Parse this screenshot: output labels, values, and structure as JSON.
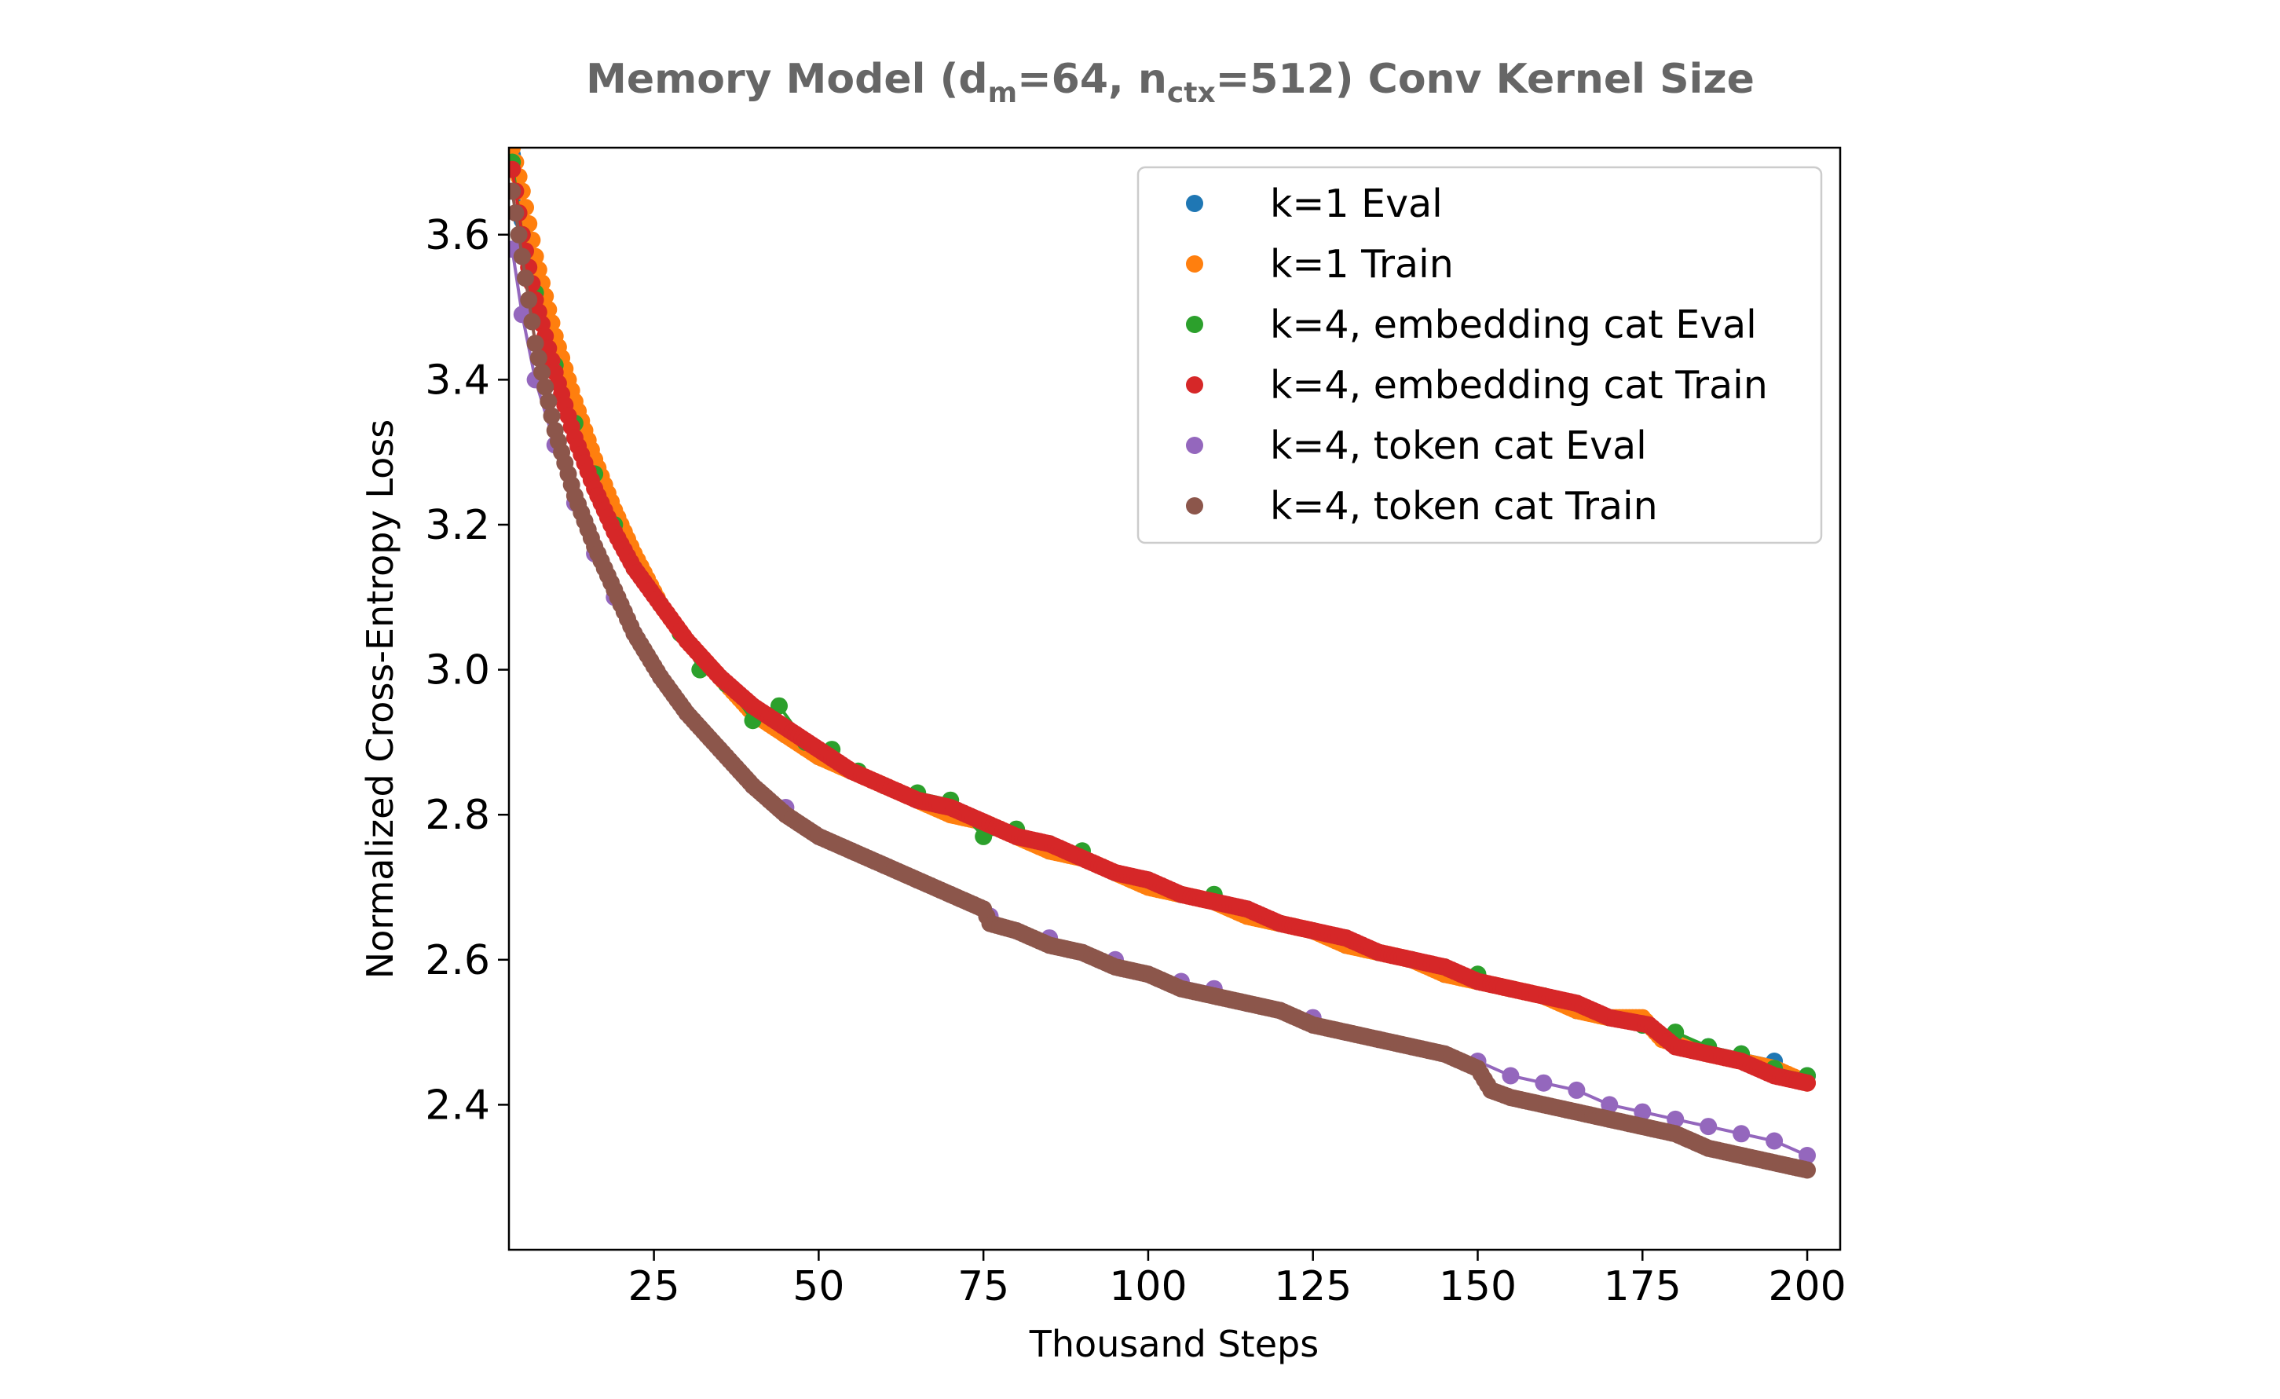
{
  "chart_data": {
    "type": "scatter",
    "title": {
      "prefix": "Memory Model (d",
      "sub1": "m",
      "mid": "=64, n",
      "sub2": "ctx",
      "suffix": "=512) Conv Kernel Size"
    },
    "xlabel": "Thousand Steps",
    "ylabel": "Normalized Cross-Entropy Loss",
    "xlim": [
      3,
      205
    ],
    "ylim": [
      2.2,
      3.72
    ],
    "xticks": [
      "25",
      "50",
      "75",
      "100",
      "125",
      "150",
      "175",
      "200"
    ],
    "yticks": [
      "2.4",
      "2.6",
      "2.8",
      "3.0",
      "3.2",
      "3.4",
      "3.6"
    ],
    "grid": false,
    "legend_position": "top-right",
    "series": [
      {
        "name": "k=1 Eval",
        "color": "#1f77b4",
        "style": "eval",
        "points": [
          [
            3.5,
            3.71
          ],
          [
            5,
            3.62
          ],
          [
            7,
            3.53
          ],
          [
            10,
            3.43
          ],
          [
            13,
            3.35
          ],
          [
            16,
            3.27
          ],
          [
            19,
            3.21
          ],
          [
            22,
            3.15
          ],
          [
            26,
            3.09
          ],
          [
            30,
            3.04
          ],
          [
            35,
            2.99
          ],
          [
            40,
            2.94
          ],
          [
            45,
            2.91
          ],
          [
            50,
            2.88
          ],
          [
            55,
            2.86
          ],
          [
            60,
            2.84
          ],
          [
            65,
            2.82
          ],
          [
            70,
            2.81
          ],
          [
            75,
            2.79
          ],
          [
            80,
            2.77
          ],
          [
            85,
            2.75
          ],
          [
            90,
            2.74
          ],
          [
            95,
            2.72
          ],
          [
            100,
            2.71
          ],
          [
            105,
            2.69
          ],
          [
            110,
            2.68
          ],
          [
            115,
            2.67
          ],
          [
            120,
            2.65
          ],
          [
            125,
            2.64
          ],
          [
            130,
            2.62
          ],
          [
            135,
            2.61
          ],
          [
            140,
            2.6
          ],
          [
            145,
            2.58
          ],
          [
            150,
            2.57
          ],
          [
            155,
            2.56
          ],
          [
            160,
            2.55
          ],
          [
            165,
            2.53
          ],
          [
            170,
            2.52
          ],
          [
            175,
            2.51
          ],
          [
            180,
            2.49
          ],
          [
            185,
            2.48
          ],
          [
            190,
            2.47
          ],
          [
            195,
            2.46
          ],
          [
            200,
            2.44
          ]
        ]
      },
      {
        "name": "k=1 Train",
        "color": "#ff7f0e",
        "style": "train",
        "points": [
          [
            3.5,
            3.72
          ],
          [
            5,
            3.66
          ],
          [
            7,
            3.57
          ],
          [
            10,
            3.46
          ],
          [
            13,
            3.37
          ],
          [
            16,
            3.29
          ],
          [
            19,
            3.22
          ],
          [
            22,
            3.16
          ],
          [
            26,
            3.09
          ],
          [
            30,
            3.04
          ],
          [
            35,
            2.99
          ],
          [
            40,
            2.94
          ],
          [
            45,
            2.91
          ],
          [
            50,
            2.88
          ],
          [
            55,
            2.86
          ],
          [
            60,
            2.84
          ],
          [
            65,
            2.82
          ],
          [
            70,
            2.8
          ],
          [
            75,
            2.79
          ],
          [
            80,
            2.77
          ],
          [
            85,
            2.75
          ],
          [
            90,
            2.74
          ],
          [
            95,
            2.72
          ],
          [
            100,
            2.7
          ],
          [
            105,
            2.69
          ],
          [
            110,
            2.68
          ],
          [
            115,
            2.66
          ],
          [
            120,
            2.65
          ],
          [
            125,
            2.64
          ],
          [
            130,
            2.62
          ],
          [
            135,
            2.61
          ],
          [
            140,
            2.6
          ],
          [
            145,
            2.58
          ],
          [
            150,
            2.57
          ],
          [
            155,
            2.56
          ],
          [
            160,
            2.55
          ],
          [
            165,
            2.53
          ],
          [
            170,
            2.52
          ],
          [
            175,
            2.52
          ],
          [
            178,
            2.49
          ],
          [
            185,
            2.47
          ],
          [
            190,
            2.46
          ],
          [
            195,
            2.45
          ],
          [
            200,
            2.43
          ]
        ]
      },
      {
        "name": "k=4, embedding cat Eval",
        "color": "#2ca02c",
        "style": "eval",
        "points": [
          [
            3.5,
            3.7
          ],
          [
            5,
            3.6
          ],
          [
            7,
            3.52
          ],
          [
            10,
            3.42
          ],
          [
            13,
            3.34
          ],
          [
            16,
            3.27
          ],
          [
            19,
            3.2
          ],
          [
            22,
            3.14
          ],
          [
            26,
            3.09
          ],
          [
            29,
            3.05
          ],
          [
            32,
            3.0
          ],
          [
            36,
            2.98
          ],
          [
            40,
            2.93
          ],
          [
            44,
            2.95
          ],
          [
            48,
            2.9
          ],
          [
            52,
            2.89
          ],
          [
            56,
            2.86
          ],
          [
            60,
            2.84
          ],
          [
            65,
            2.83
          ],
          [
            70,
            2.82
          ],
          [
            75,
            2.77
          ],
          [
            80,
            2.78
          ],
          [
            85,
            2.76
          ],
          [
            90,
            2.75
          ],
          [
            95,
            2.72
          ],
          [
            100,
            2.71
          ],
          [
            105,
            2.69
          ],
          [
            110,
            2.69
          ],
          [
            115,
            2.67
          ],
          [
            120,
            2.65
          ],
          [
            125,
            2.64
          ],
          [
            130,
            2.63
          ],
          [
            135,
            2.61
          ],
          [
            140,
            2.6
          ],
          [
            145,
            2.59
          ],
          [
            150,
            2.58
          ],
          [
            155,
            2.56
          ],
          [
            160,
            2.55
          ],
          [
            165,
            2.54
          ],
          [
            170,
            2.52
          ],
          [
            175,
            2.51
          ],
          [
            180,
            2.5
          ],
          [
            185,
            2.48
          ],
          [
            190,
            2.47
          ],
          [
            195,
            2.45
          ],
          [
            200,
            2.44
          ]
        ]
      },
      {
        "name": "k=4, embedding cat Train",
        "color": "#d62728",
        "style": "train",
        "points": [
          [
            3.5,
            3.69
          ],
          [
            5,
            3.6
          ],
          [
            7,
            3.51
          ],
          [
            10,
            3.41
          ],
          [
            13,
            3.32
          ],
          [
            16,
            3.25
          ],
          [
            19,
            3.19
          ],
          [
            22,
            3.14
          ],
          [
            26,
            3.09
          ],
          [
            30,
            3.04
          ],
          [
            35,
            2.99
          ],
          [
            40,
            2.95
          ],
          [
            45,
            2.92
          ],
          [
            50,
            2.89
          ],
          [
            55,
            2.86
          ],
          [
            60,
            2.84
          ],
          [
            65,
            2.82
          ],
          [
            70,
            2.81
          ],
          [
            75,
            2.79
          ],
          [
            80,
            2.77
          ],
          [
            85,
            2.76
          ],
          [
            90,
            2.74
          ],
          [
            95,
            2.72
          ],
          [
            100,
            2.71
          ],
          [
            105,
            2.69
          ],
          [
            110,
            2.68
          ],
          [
            115,
            2.67
          ],
          [
            120,
            2.65
          ],
          [
            125,
            2.64
          ],
          [
            130,
            2.63
          ],
          [
            135,
            2.61
          ],
          [
            140,
            2.6
          ],
          [
            145,
            2.59
          ],
          [
            150,
            2.57
          ],
          [
            155,
            2.56
          ],
          [
            160,
            2.55
          ],
          [
            165,
            2.54
          ],
          [
            170,
            2.52
          ],
          [
            176,
            2.51
          ],
          [
            180,
            2.48
          ],
          [
            185,
            2.47
          ],
          [
            190,
            2.46
          ],
          [
            195,
            2.44
          ],
          [
            200,
            2.43
          ]
        ]
      },
      {
        "name": "k=4, token cat Eval",
        "color": "#9467bd",
        "style": "eval",
        "points": [
          [
            3.5,
            3.58
          ],
          [
            5,
            3.49
          ],
          [
            7,
            3.4
          ],
          [
            10,
            3.31
          ],
          [
            13,
            3.23
          ],
          [
            16,
            3.16
          ],
          [
            19,
            3.1
          ],
          [
            22,
            3.05
          ],
          [
            26,
            2.99
          ],
          [
            30,
            2.94
          ],
          [
            35,
            2.89
          ],
          [
            40,
            2.84
          ],
          [
            45,
            2.81
          ],
          [
            50,
            2.77
          ],
          [
            55,
            2.75
          ],
          [
            60,
            2.73
          ],
          [
            65,
            2.71
          ],
          [
            70,
            2.69
          ],
          [
            76,
            2.66
          ],
          [
            80,
            2.64
          ],
          [
            85,
            2.63
          ],
          [
            90,
            2.61
          ],
          [
            95,
            2.6
          ],
          [
            100,
            2.58
          ],
          [
            105,
            2.57
          ],
          [
            110,
            2.56
          ],
          [
            115,
            2.54
          ],
          [
            120,
            2.53
          ],
          [
            125,
            2.52
          ],
          [
            130,
            2.5
          ],
          [
            135,
            2.49
          ],
          [
            140,
            2.48
          ],
          [
            145,
            2.47
          ],
          [
            150,
            2.46
          ],
          [
            155,
            2.44
          ],
          [
            160,
            2.43
          ],
          [
            165,
            2.42
          ],
          [
            170,
            2.4
          ],
          [
            175,
            2.39
          ],
          [
            180,
            2.38
          ],
          [
            185,
            2.37
          ],
          [
            190,
            2.36
          ],
          [
            195,
            2.35
          ],
          [
            200,
            2.33
          ]
        ]
      },
      {
        "name": "k=4, token cat Train",
        "color": "#8c564b",
        "style": "train",
        "points": [
          [
            3.5,
            3.66
          ],
          [
            5,
            3.57
          ],
          [
            7,
            3.45
          ],
          [
            10,
            3.33
          ],
          [
            13,
            3.24
          ],
          [
            16,
            3.17
          ],
          [
            19,
            3.11
          ],
          [
            22,
            3.05
          ],
          [
            26,
            2.99
          ],
          [
            30,
            2.94
          ],
          [
            35,
            2.89
          ],
          [
            40,
            2.84
          ],
          [
            45,
            2.8
          ],
          [
            50,
            2.77
          ],
          [
            55,
            2.75
          ],
          [
            60,
            2.73
          ],
          [
            65,
            2.71
          ],
          [
            70,
            2.69
          ],
          [
            75,
            2.67
          ],
          [
            76,
            2.65
          ],
          [
            80,
            2.64
          ],
          [
            85,
            2.62
          ],
          [
            90,
            2.61
          ],
          [
            95,
            2.59
          ],
          [
            100,
            2.58
          ],
          [
            105,
            2.56
          ],
          [
            110,
            2.55
          ],
          [
            115,
            2.54
          ],
          [
            120,
            2.53
          ],
          [
            125,
            2.51
          ],
          [
            130,
            2.5
          ],
          [
            135,
            2.49
          ],
          [
            140,
            2.48
          ],
          [
            145,
            2.47
          ],
          [
            150,
            2.45
          ],
          [
            152,
            2.42
          ],
          [
            155,
            2.41
          ],
          [
            160,
            2.4
          ],
          [
            165,
            2.39
          ],
          [
            170,
            2.38
          ],
          [
            175,
            2.37
          ],
          [
            180,
            2.36
          ],
          [
            185,
            2.34
          ],
          [
            190,
            2.33
          ],
          [
            195,
            2.32
          ],
          [
            200,
            2.31
          ]
        ]
      }
    ]
  }
}
